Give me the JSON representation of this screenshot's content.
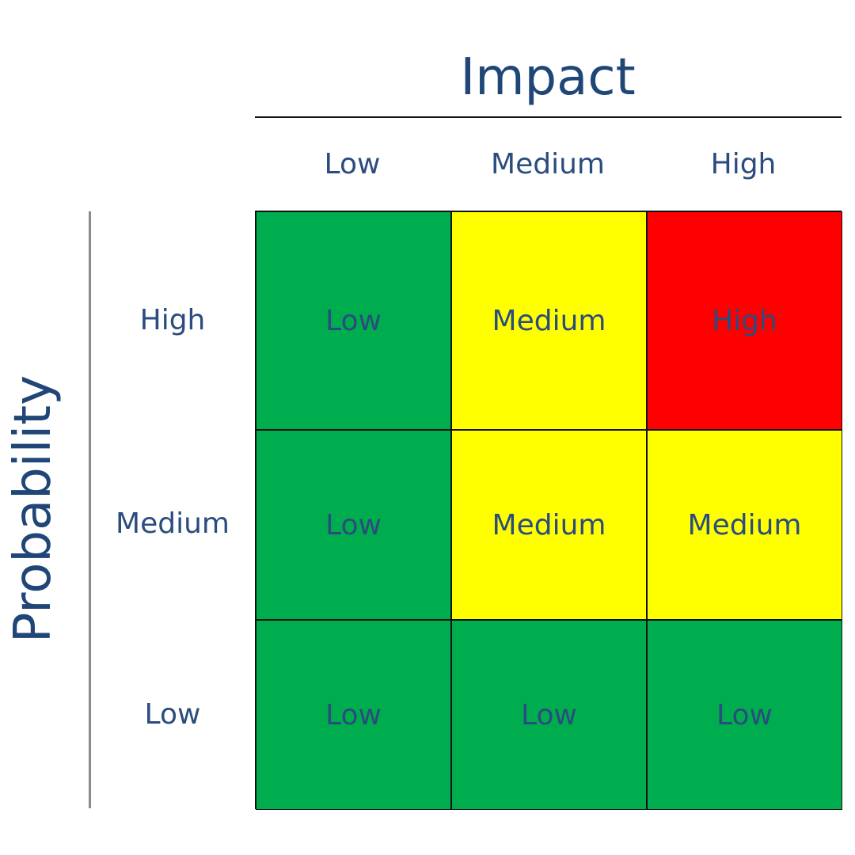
{
  "impact": {
    "title": "Impact",
    "levels": [
      "Low",
      "Medium",
      "High"
    ]
  },
  "probability": {
    "title": "Probability",
    "levels": [
      "High",
      "Medium",
      "Low"
    ]
  },
  "matrix": {
    "rows": [
      [
        "Low",
        "Medium",
        "High"
      ],
      [
        "Low",
        "Medium",
        "Medium"
      ],
      [
        "Low",
        "Low",
        "Low"
      ]
    ]
  },
  "colors": {
    "low": "#00ad4e",
    "medium": "#ffff00",
    "high": "#ff0000",
    "label_text": "#2b4c7e",
    "title_text": "#1f4677"
  }
}
